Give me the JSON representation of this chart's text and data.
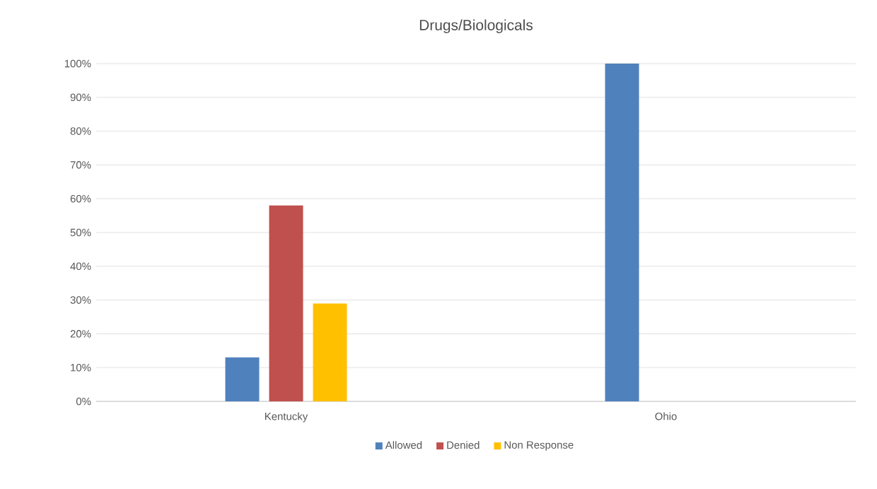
{
  "chart_data": {
    "type": "bar",
    "title": "Drugs/Biologicals",
    "categories": [
      "Kentucky",
      "Ohio"
    ],
    "series": [
      {
        "name": "Allowed",
        "color": "#4f81bd",
        "values": [
          13,
          100
        ]
      },
      {
        "name": "Denied",
        "color": "#c0504d",
        "values": [
          58,
          0
        ]
      },
      {
        "name": "Non Response",
        "color": "#ffc000",
        "values": [
          29,
          0
        ]
      }
    ],
    "ylim": [
      0,
      100
    ],
    "yticks": [
      {
        "value": 0,
        "label": "0%"
      },
      {
        "value": 10,
        "label": "10%"
      },
      {
        "value": 20,
        "label": "20%"
      },
      {
        "value": 30,
        "label": "30%"
      },
      {
        "value": 40,
        "label": "40%"
      },
      {
        "value": 50,
        "label": "50%"
      },
      {
        "value": 60,
        "label": "60%"
      },
      {
        "value": 70,
        "label": "70%"
      },
      {
        "value": 80,
        "label": "80%"
      },
      {
        "value": 90,
        "label": "90%"
      },
      {
        "value": 100,
        "label": "100%"
      }
    ],
    "grid": "y",
    "legend": "bottom"
  }
}
